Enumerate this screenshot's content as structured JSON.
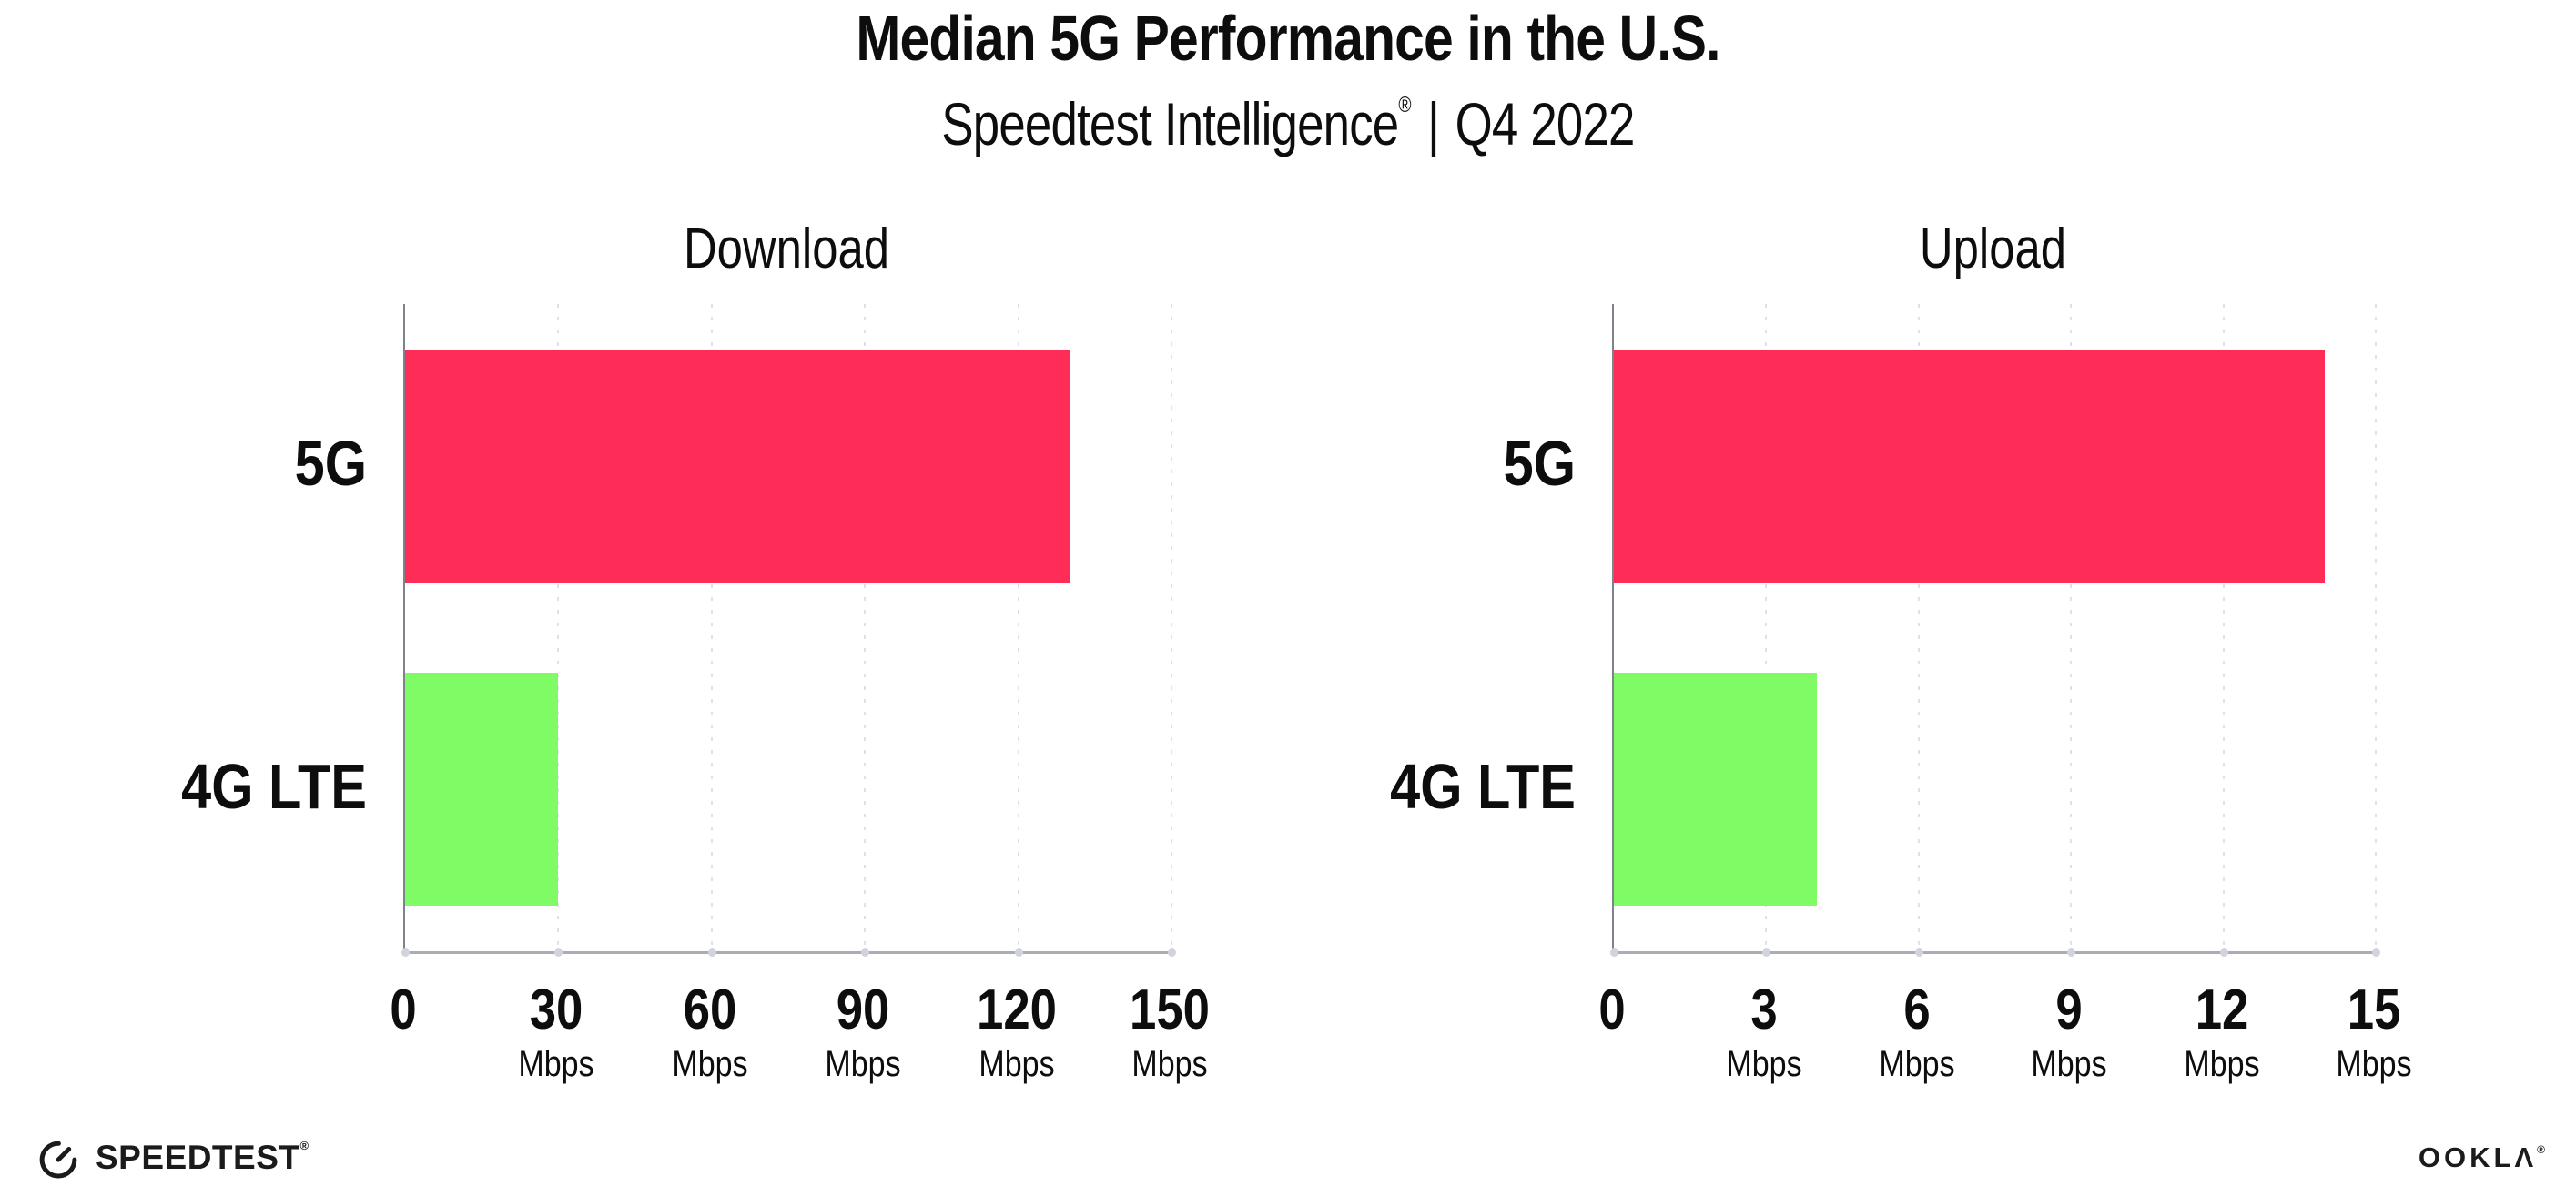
{
  "page": {
    "title": "Median 5G Performance in the U.S.",
    "subtitle_brand": "Speedtest Intelligence",
    "subtitle_reg_mark": "®",
    "subtitle_separator": "|",
    "subtitle_period": "Q4 2022"
  },
  "footer": {
    "speedtest_logo_text": "SPEEDTEST",
    "speedtest_trademark": "®",
    "ookla_logo_text": "OOKLΛ",
    "ookla_trademark": "®"
  },
  "colors": {
    "series_colors": [
      "#fd2d58",
      "#7ffc65"
    ],
    "axis_left": "#7e828a",
    "axis_bottom": "#aaadb4",
    "gridline": "#dfe1ea",
    "text": "#0d0d0d"
  },
  "chart_data": [
    {
      "type": "bar",
      "orientation": "horizontal",
      "title": "Download",
      "categories": [
        "5G",
        "4G LTE"
      ],
      "values": [
        130,
        30
      ],
      "unit": "Mbps",
      "xlim": [
        0,
        150
      ],
      "xticks": [
        0,
        30,
        60,
        90,
        120,
        150
      ],
      "tick_unit_label": "Mbps",
      "grid": "vertical-dotted",
      "legend": "none"
    },
    {
      "type": "bar",
      "orientation": "horizontal",
      "title": "Upload",
      "categories": [
        "5G",
        "4G LTE"
      ],
      "values": [
        14,
        4
      ],
      "unit": "Mbps",
      "xlim": [
        0,
        15
      ],
      "xticks": [
        0,
        3,
        6,
        9,
        12,
        15
      ],
      "tick_unit_label": "Mbps",
      "grid": "vertical-dotted",
      "legend": "none"
    }
  ]
}
